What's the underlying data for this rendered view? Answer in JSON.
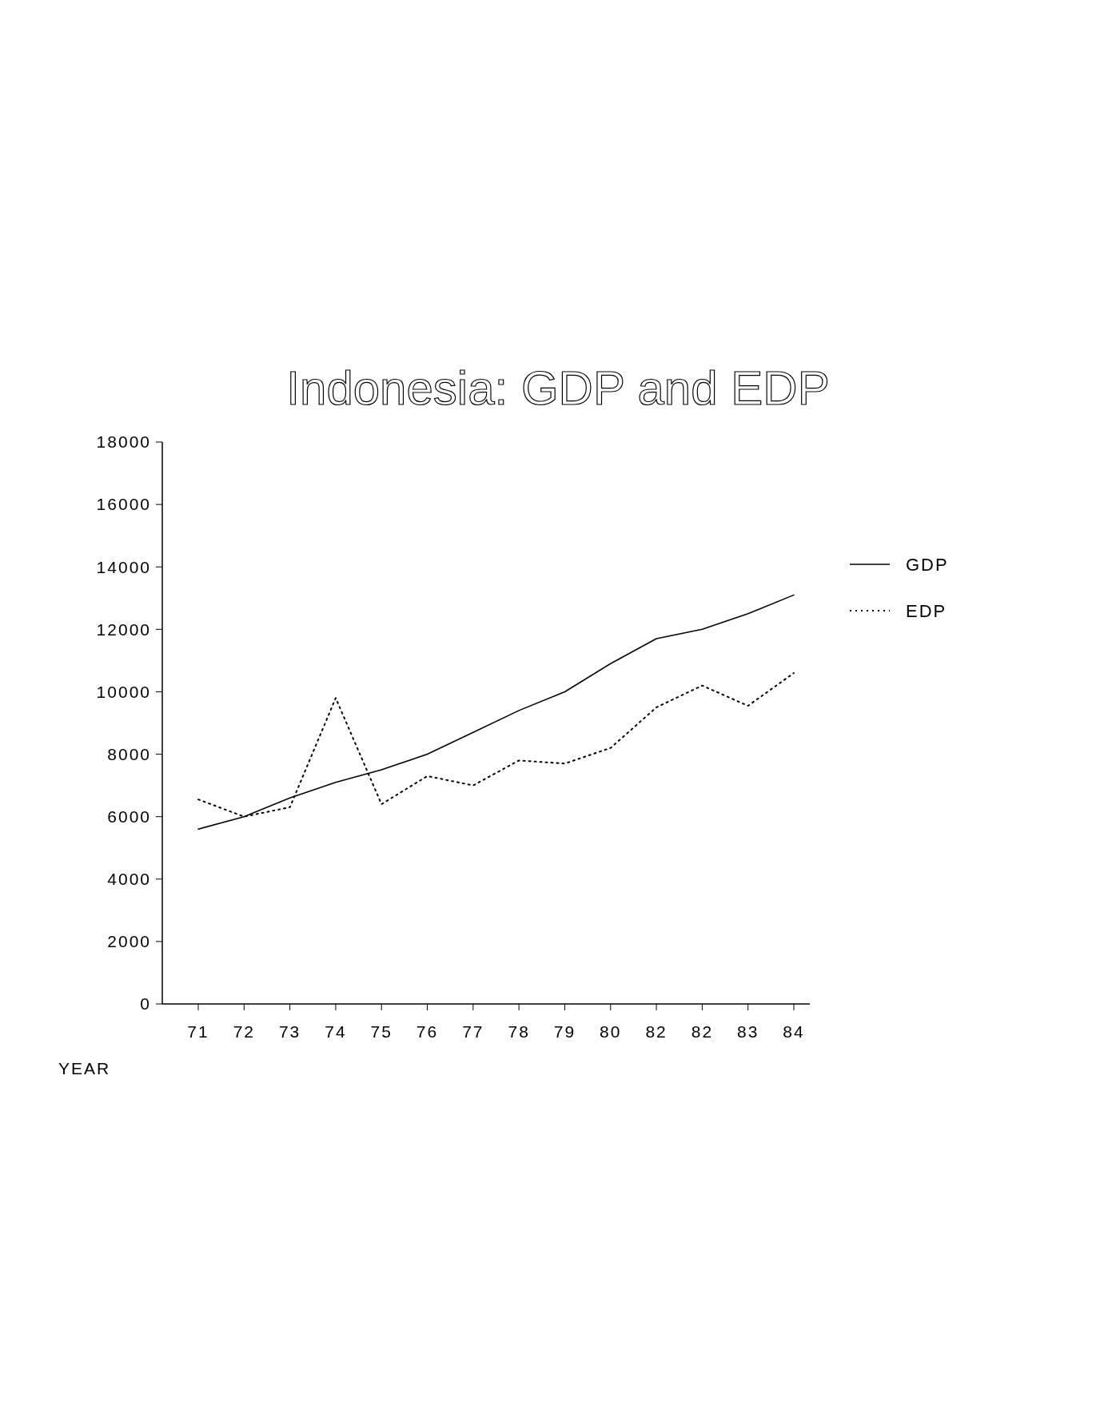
{
  "chart_data": {
    "type": "line",
    "title": "Indonesia: GDP and EDP",
    "xlabel": "YEAR",
    "categories": [
      "71",
      "72",
      "73",
      "74",
      "75",
      "76",
      "77",
      "78",
      "79",
      "80",
      "82",
      "82",
      "83",
      "84"
    ],
    "series": [
      {
        "name": "GDP",
        "color": "#000000",
        "line_style": "solid",
        "values": [
          5600,
          6000,
          6600,
          7100,
          7500,
          8000,
          8700,
          9400,
          10000,
          10900,
          11700,
          12000,
          12500,
          13100
        ]
      },
      {
        "name": "EDP",
        "color": "#000000",
        "line_style": "dotted",
        "values": [
          6550,
          6000,
          6300,
          9800,
          6400,
          7300,
          7000,
          7800,
          7700,
          8200,
          9500,
          10200,
          9550,
          10600
        ]
      }
    ],
    "ylim": [
      0,
      18000
    ],
    "yticks": [
      0,
      2000,
      4000,
      6000,
      8000,
      10000,
      12000,
      14000,
      16000,
      18000
    ],
    "legend": "right"
  }
}
